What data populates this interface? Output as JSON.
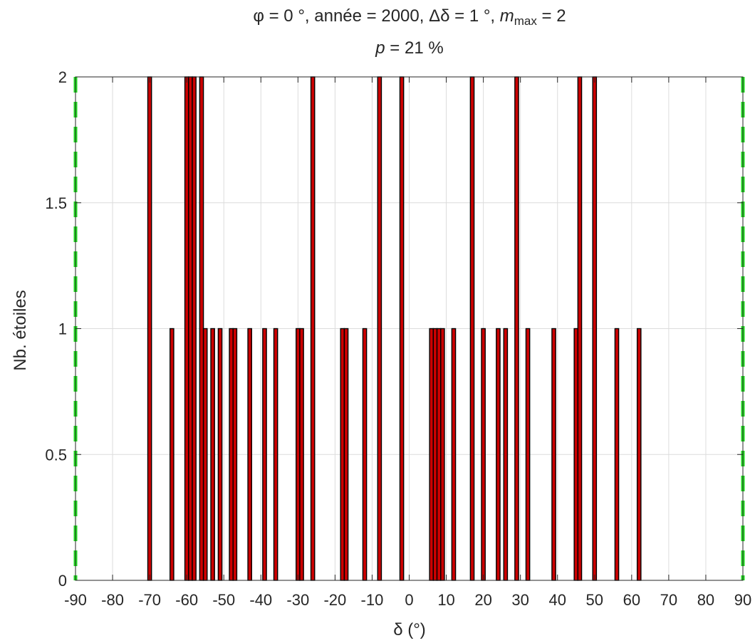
{
  "chart_data": {
    "type": "bar",
    "title": {
      "line1": {
        "pre": "φ = 0 °, année = 2000, Δδ = 1 °, ",
        "m": "m",
        "sub": "max",
        "post": " = 2"
      },
      "line2": {
        "p": "p",
        "rest": " = 21 %"
      }
    },
    "xlabel": "δ (°)",
    "ylabel": "Nb. étoiles",
    "xlim": [
      -90,
      90
    ],
    "ylim": [
      0,
      2
    ],
    "xticks": [
      "-90",
      "-80",
      "-70",
      "-60",
      "-50",
      "-40",
      "-30",
      "-20",
      "-10",
      "0",
      "10",
      "20",
      "30",
      "40",
      "50",
      "60",
      "70",
      "80",
      "90"
    ],
    "yticks": [
      "0",
      "0.5",
      "1",
      "1.5",
      "2"
    ],
    "grid": true,
    "bin_width": 1,
    "bar_color": "#cc0000",
    "bar_edge_color": "#000000",
    "reference_line_color": "#22dd22",
    "reference_lines_x": [
      -90,
      90
    ],
    "bins_x": [
      -70,
      -64,
      -60,
      -59,
      -58,
      -56,
      -55,
      -53,
      -51,
      -48,
      -47,
      -43,
      -39,
      -36,
      -30,
      -29,
      -26,
      -18,
      -17,
      -12,
      -8,
      -2,
      6,
      7,
      8,
      9,
      12,
      17,
      20,
      24,
      26,
      29,
      32,
      39,
      45,
      46,
      50,
      56,
      62
    ],
    "values": [
      2,
      1,
      2,
      2,
      2,
      2,
      1,
      1,
      1,
      1,
      1,
      1,
      1,
      1,
      1,
      1,
      2,
      1,
      1,
      1,
      2,
      2,
      1,
      1,
      1,
      1,
      1,
      2,
      1,
      1,
      1,
      2,
      1,
      1,
      1,
      2,
      2,
      1,
      1
    ]
  }
}
